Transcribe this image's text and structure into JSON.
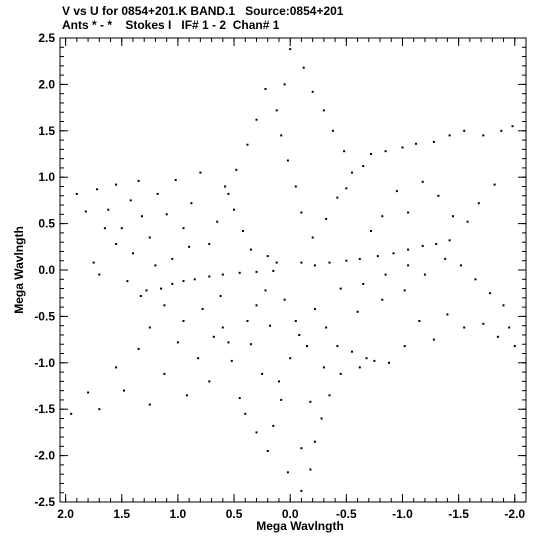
{
  "header": {
    "line1": "V vs U for 0854+201.K BAND.1   Source:0854+201",
    "line2": "Ants * - *    Stokes I   IF# 1 - 2  Chan# 1"
  },
  "chart_data": {
    "type": "scatter",
    "xlabel": "Mega Wavlngth",
    "ylabel": "Mega Wavlngth",
    "xlim": [
      2.05,
      -2.1
    ],
    "ylim": [
      -2.5,
      2.5
    ],
    "x_ticks": [
      2.0,
      1.5,
      1.0,
      0.5,
      0.0,
      -0.5,
      -1.0,
      -1.5,
      -2.0
    ],
    "x_tick_labels": [
      "2.0",
      "1.5",
      "1.0",
      "0.5",
      "0.0",
      "-0.5",
      "-1.0",
      "-1.5",
      "-2.0"
    ],
    "y_ticks": [
      2.5,
      2.0,
      1.5,
      1.0,
      0.5,
      0.0,
      -0.5,
      -1.0,
      -1.5,
      -2.0,
      -2.5
    ],
    "y_tick_labels": [
      "2.5",
      "2.0",
      "1.5",
      "1.0",
      "0.5",
      "0.0",
      "-0.5",
      "-1.0",
      "-1.5",
      "-2.0",
      "-2.5"
    ],
    "marker": "dot",
    "grid": false,
    "points": [
      [
        1.9,
        0.82
      ],
      [
        1.82,
        0.63
      ],
      [
        1.72,
        0.87
      ],
      [
        1.62,
        0.65
      ],
      [
        1.55,
        0.92
      ],
      [
        1.5,
        0.45
      ],
      [
        1.42,
        0.75
      ],
      [
        1.35,
        0.96
      ],
      [
        1.32,
        0.58
      ],
      [
        1.25,
        0.35
      ],
      [
        1.18,
        0.82
      ],
      [
        1.1,
        0.6
      ],
      [
        1.02,
        0.97
      ],
      [
        0.95,
        0.45
      ],
      [
        0.88,
        0.72
      ],
      [
        0.8,
        1.05
      ],
      [
        0.72,
        0.28
      ],
      [
        0.65,
        0.52
      ],
      [
        0.58,
        0.9
      ],
      [
        0.5,
        0.65
      ],
      [
        0.42,
        0.42
      ],
      [
        0.35,
        0.22
      ],
      [
        0.2,
        0.15
      ],
      [
        0.12,
        0.08
      ],
      [
        1.75,
        0.08
      ],
      [
        1.7,
        -0.05
      ],
      [
        1.45,
        -0.12
      ],
      [
        1.33,
        -0.28
      ],
      [
        1.28,
        -0.22
      ],
      [
        1.15,
        -0.2
      ],
      [
        1.05,
        -0.15
      ],
      [
        0.95,
        -0.12
      ],
      [
        0.85,
        -0.1
      ],
      [
        0.72,
        -0.07
      ],
      [
        0.6,
        -0.05
      ],
      [
        0.45,
        -0.03
      ],
      [
        0.3,
        -0.02
      ],
      [
        0.15,
        -0.01
      ],
      [
        1.95,
        -1.55
      ],
      [
        1.8,
        -1.32
      ],
      [
        1.7,
        -1.5
      ],
      [
        1.55,
        -1.05
      ],
      [
        1.48,
        -1.3
      ],
      [
        1.35,
        -0.85
      ],
      [
        1.25,
        -1.45
      ],
      [
        1.12,
        -1.12
      ],
      [
        1.0,
        -0.78
      ],
      [
        0.92,
        -1.35
      ],
      [
        0.82,
        -0.95
      ],
      [
        0.72,
        -1.2
      ],
      [
        0.6,
        -0.62
      ],
      [
        0.52,
        -0.98
      ],
      [
        0.45,
        -1.38
      ],
      [
        0.38,
        -0.55
      ],
      [
        0.3,
        -0.38
      ],
      [
        0.22,
        -0.22
      ],
      [
        0.4,
        -1.55
      ],
      [
        0.3,
        -1.75
      ],
      [
        0.2,
        -1.95
      ],
      [
        0.15,
        -1.68
      ],
      [
        0.08,
        -1.4
      ],
      [
        0.02,
        -2.18
      ],
      [
        -0.1,
        -2.38
      ],
      [
        -0.18,
        -2.15
      ],
      [
        -0.22,
        -1.85
      ],
      [
        -0.28,
        -1.6
      ],
      [
        -0.35,
        -1.35
      ],
      [
        -0.45,
        -1.12
      ],
      [
        -0.55,
        -0.88
      ],
      [
        -0.62,
        -1.05
      ],
      [
        -0.68,
        -0.95
      ],
      [
        -0.75,
        -0.98
      ],
      [
        -0.88,
        -1.0
      ],
      [
        -1.02,
        -0.82
      ],
      [
        -1.15,
        -0.55
      ],
      [
        -1.28,
        -0.75
      ],
      [
        -1.4,
        -0.48
      ],
      [
        -1.55,
        -0.62
      ],
      [
        -1.72,
        -0.58
      ],
      [
        -1.85,
        -0.72
      ],
      [
        -1.95,
        -0.62
      ],
      [
        -2.0,
        -0.82
      ],
      [
        -1.9,
        -0.38
      ],
      [
        -1.78,
        -0.25
      ],
      [
        -0.1,
        0.08
      ],
      [
        -0.22,
        0.05
      ],
      [
        -0.35,
        0.08
      ],
      [
        -0.5,
        0.1
      ],
      [
        -0.62,
        0.12
      ],
      [
        -0.78,
        0.15
      ],
      [
        -0.92,
        0.18
      ],
      [
        -1.05,
        0.22
      ],
      [
        -1.18,
        0.26
      ],
      [
        -1.3,
        0.28
      ],
      [
        -1.42,
        0.32
      ],
      [
        -1.38,
        0.12
      ],
      [
        -1.52,
        0.05
      ],
      [
        -1.65,
        -0.1
      ],
      [
        -0.2,
        0.35
      ],
      [
        -0.32,
        0.55
      ],
      [
        -0.42,
        0.78
      ],
      [
        -0.5,
        0.88
      ],
      [
        -0.55,
        1.05
      ],
      [
        -0.65,
        1.12
      ],
      [
        -0.72,
        1.25
      ],
      [
        -0.85,
        1.28
      ],
      [
        -1.0,
        1.32
      ],
      [
        -1.12,
        1.36
      ],
      [
        -1.28,
        1.38
      ],
      [
        -1.42,
        1.45
      ],
      [
        -1.55,
        1.5
      ],
      [
        -1.72,
        1.45
      ],
      [
        -1.88,
        1.5
      ],
      [
        -1.98,
        1.55
      ],
      [
        -1.82,
        0.92
      ],
      [
        -1.68,
        0.72
      ],
      [
        -1.58,
        0.52
      ],
      [
        -1.45,
        0.58
      ],
      [
        -1.32,
        0.8
      ],
      [
        -1.18,
        0.95
      ],
      [
        -1.05,
        0.62
      ],
      [
        -0.95,
        0.85
      ],
      [
        -0.82,
        0.58
      ],
      [
        -0.72,
        0.42
      ],
      [
        -0.1,
        0.62
      ],
      [
        -0.05,
        0.9
      ],
      [
        0.02,
        1.18
      ],
      [
        0.08,
        1.45
      ],
      [
        0.12,
        1.72
      ],
      [
        0.05,
        2.0
      ],
      [
        0.0,
        2.38
      ],
      [
        -0.12,
        2.18
      ],
      [
        -0.2,
        1.92
      ],
      [
        -0.3,
        1.72
      ],
      [
        -0.38,
        1.5
      ],
      [
        -0.48,
        1.28
      ],
      [
        0.22,
        1.95
      ],
      [
        0.3,
        1.62
      ],
      [
        0.38,
        1.35
      ],
      [
        0.48,
        1.08
      ],
      [
        0.55,
        0.82
      ],
      [
        -0.22,
        -0.42
      ],
      [
        -0.32,
        -0.62
      ],
      [
        -0.42,
        -0.82
      ],
      [
        -0.3,
        -1.05
      ],
      [
        -0.15,
        -0.82
      ],
      [
        -0.05,
        -0.55
      ],
      [
        0.05,
        -0.32
      ],
      [
        -0.6,
        -0.45
      ],
      [
        -0.82,
        -0.32
      ],
      [
        -1.02,
        -0.22
      ],
      [
        -1.2,
        -0.05
      ],
      [
        -1.05,
        0.05
      ],
      [
        -0.85,
        -0.05
      ],
      [
        -0.65,
        -0.15
      ],
      [
        -0.45,
        -0.2
      ],
      [
        0.9,
        0.25
      ],
      [
        1.05,
        0.12
      ],
      [
        1.2,
        0.05
      ],
      [
        1.4,
        0.18
      ],
      [
        1.55,
        0.28
      ],
      [
        1.65,
        0.45
      ],
      [
        0.95,
        -0.55
      ],
      [
        1.12,
        -0.38
      ],
      [
        1.25,
        -0.62
      ],
      [
        0.78,
        -0.42
      ],
      [
        0.62,
        -0.28
      ],
      [
        0.55,
        -0.78
      ],
      [
        0.68,
        -0.72
      ],
      [
        0.35,
        -0.8
      ],
      [
        0.25,
        -1.12
      ],
      [
        0.18,
        -0.6
      ],
      [
        0.1,
        -1.2
      ],
      [
        0.0,
        -0.95
      ],
      [
        -0.08,
        -0.7
      ],
      [
        -0.18,
        -1.42
      ],
      [
        -0.1,
        -1.92
      ]
    ]
  }
}
